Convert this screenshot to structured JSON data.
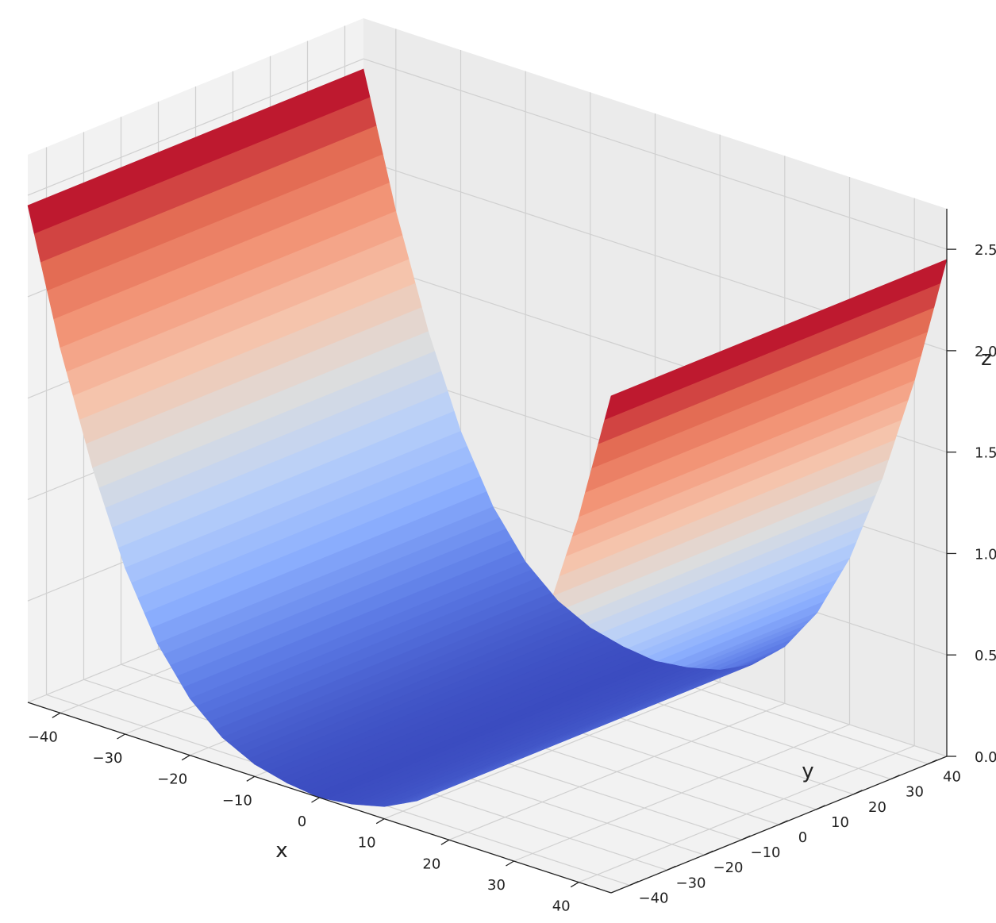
{
  "chart_data": {
    "type": "surface",
    "title": "",
    "xlabel": "x",
    "ylabel": "y",
    "zlabel": "z",
    "x_ticks": [
      -40,
      -30,
      -20,
      -10,
      0,
      10,
      20,
      30,
      40
    ],
    "y_ticks": [
      -40,
      -30,
      -20,
      -10,
      0,
      10,
      20,
      30,
      40
    ],
    "z_ticks": [
      "0.0",
      "0.5",
      "1.0",
      "1.5",
      "2.0",
      "2.5"
    ],
    "x_range": [
      -45,
      45
    ],
    "y_range": [
      -45,
      45
    ],
    "z_range": [
      0,
      2.7
    ],
    "x_ticklabels": [
      "−40",
      "−30",
      "−20",
      "−10",
      "0",
      "10",
      "20",
      "30",
      "40"
    ],
    "y_ticklabels": [
      "−40",
      "−30",
      "−20",
      "−10",
      "0",
      "10",
      "20",
      "30",
      "40"
    ],
    "surface_profile": {
      "x": [
        -45,
        -40,
        -35,
        -30,
        -25,
        -20,
        -15,
        -10,
        -5,
        0,
        5,
        10,
        15,
        20,
        25,
        30,
        35,
        40,
        45
      ],
      "z": [
        2.45,
        1.8,
        1.26,
        0.82,
        0.5,
        0.28,
        0.14,
        0.06,
        0.02,
        0.0,
        0.02,
        0.06,
        0.14,
        0.28,
        0.5,
        0.82,
        1.26,
        1.8,
        2.45
      ],
      "constant_along": "y"
    },
    "colormap": "coolwarm",
    "colormap_stops": [
      "#3b4cc0",
      "#5d7ce6",
      "#8db0fe",
      "#b8d0f9",
      "#dddddd",
      "#f5c4ac",
      "#f4987a",
      "#e26952",
      "#b40426"
    ],
    "grid": true
  }
}
